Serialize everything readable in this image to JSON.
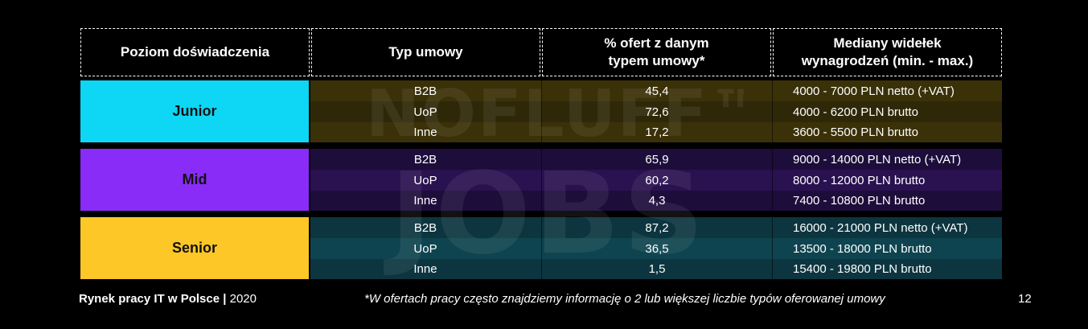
{
  "headers": {
    "level": "Poziom doświadczenia",
    "contract": "Typ umowy",
    "percent_line1": "% ofert z danym",
    "percent_line2": "typem umowy*",
    "salary_line1": "Mediany widełek",
    "salary_line2": "wynagrodzeń (min. - max.)"
  },
  "watermark": {
    "line1": "NOFLUFF™",
    "line2": "JOBS"
  },
  "groups": [
    {
      "level": "Junior",
      "color": "#0dd7f4",
      "band_colors": [
        "#3b3108",
        "#2f2808"
      ],
      "rows": [
        {
          "type": "B2B",
          "percent": "45,4",
          "salary": "4000 - 7000 PLN netto (+VAT)"
        },
        {
          "type": "UoP",
          "percent": "72,6",
          "salary": "4000 - 6200 PLN brutto"
        },
        {
          "type": "Inne",
          "percent": "17,2",
          "salary": "3600 - 5500 PLN brutto"
        }
      ]
    },
    {
      "level": "Mid",
      "color": "#8a2cf7",
      "band_colors": [
        "#1d0d3b",
        "#2a1150"
      ],
      "rows": [
        {
          "type": "B2B",
          "percent": "65,9",
          "salary": "9000 - 14000 PLN netto (+VAT)"
        },
        {
          "type": "UoP",
          "percent": "60,2",
          "salary": "8000 - 12000 PLN brutto"
        },
        {
          "type": "Inne",
          "percent": "4,3",
          "salary": "7400 - 10800 PLN brutto"
        }
      ]
    },
    {
      "level": "Senior",
      "color": "#fcc727",
      "band_colors": [
        "#0c3540",
        "#0e444f"
      ],
      "rows": [
        {
          "type": "B2B",
          "percent": "87,2",
          "salary": "16000 - 21000 PLN netto (+VAT)"
        },
        {
          "type": "UoP",
          "percent": "36,5",
          "salary": "13500 - 18000 PLN brutto"
        },
        {
          "type": "Inne",
          "percent": "1,5",
          "salary": "15400 - 19800 PLN brutto"
        }
      ]
    }
  ],
  "footer": {
    "title": "Rynek pracy IT w Polsce |",
    "year": " 2020",
    "note": "*W ofertach pracy często znajdziemy informację o 2 lub większej liczbie typów oferowanej umowy",
    "page": "12"
  }
}
